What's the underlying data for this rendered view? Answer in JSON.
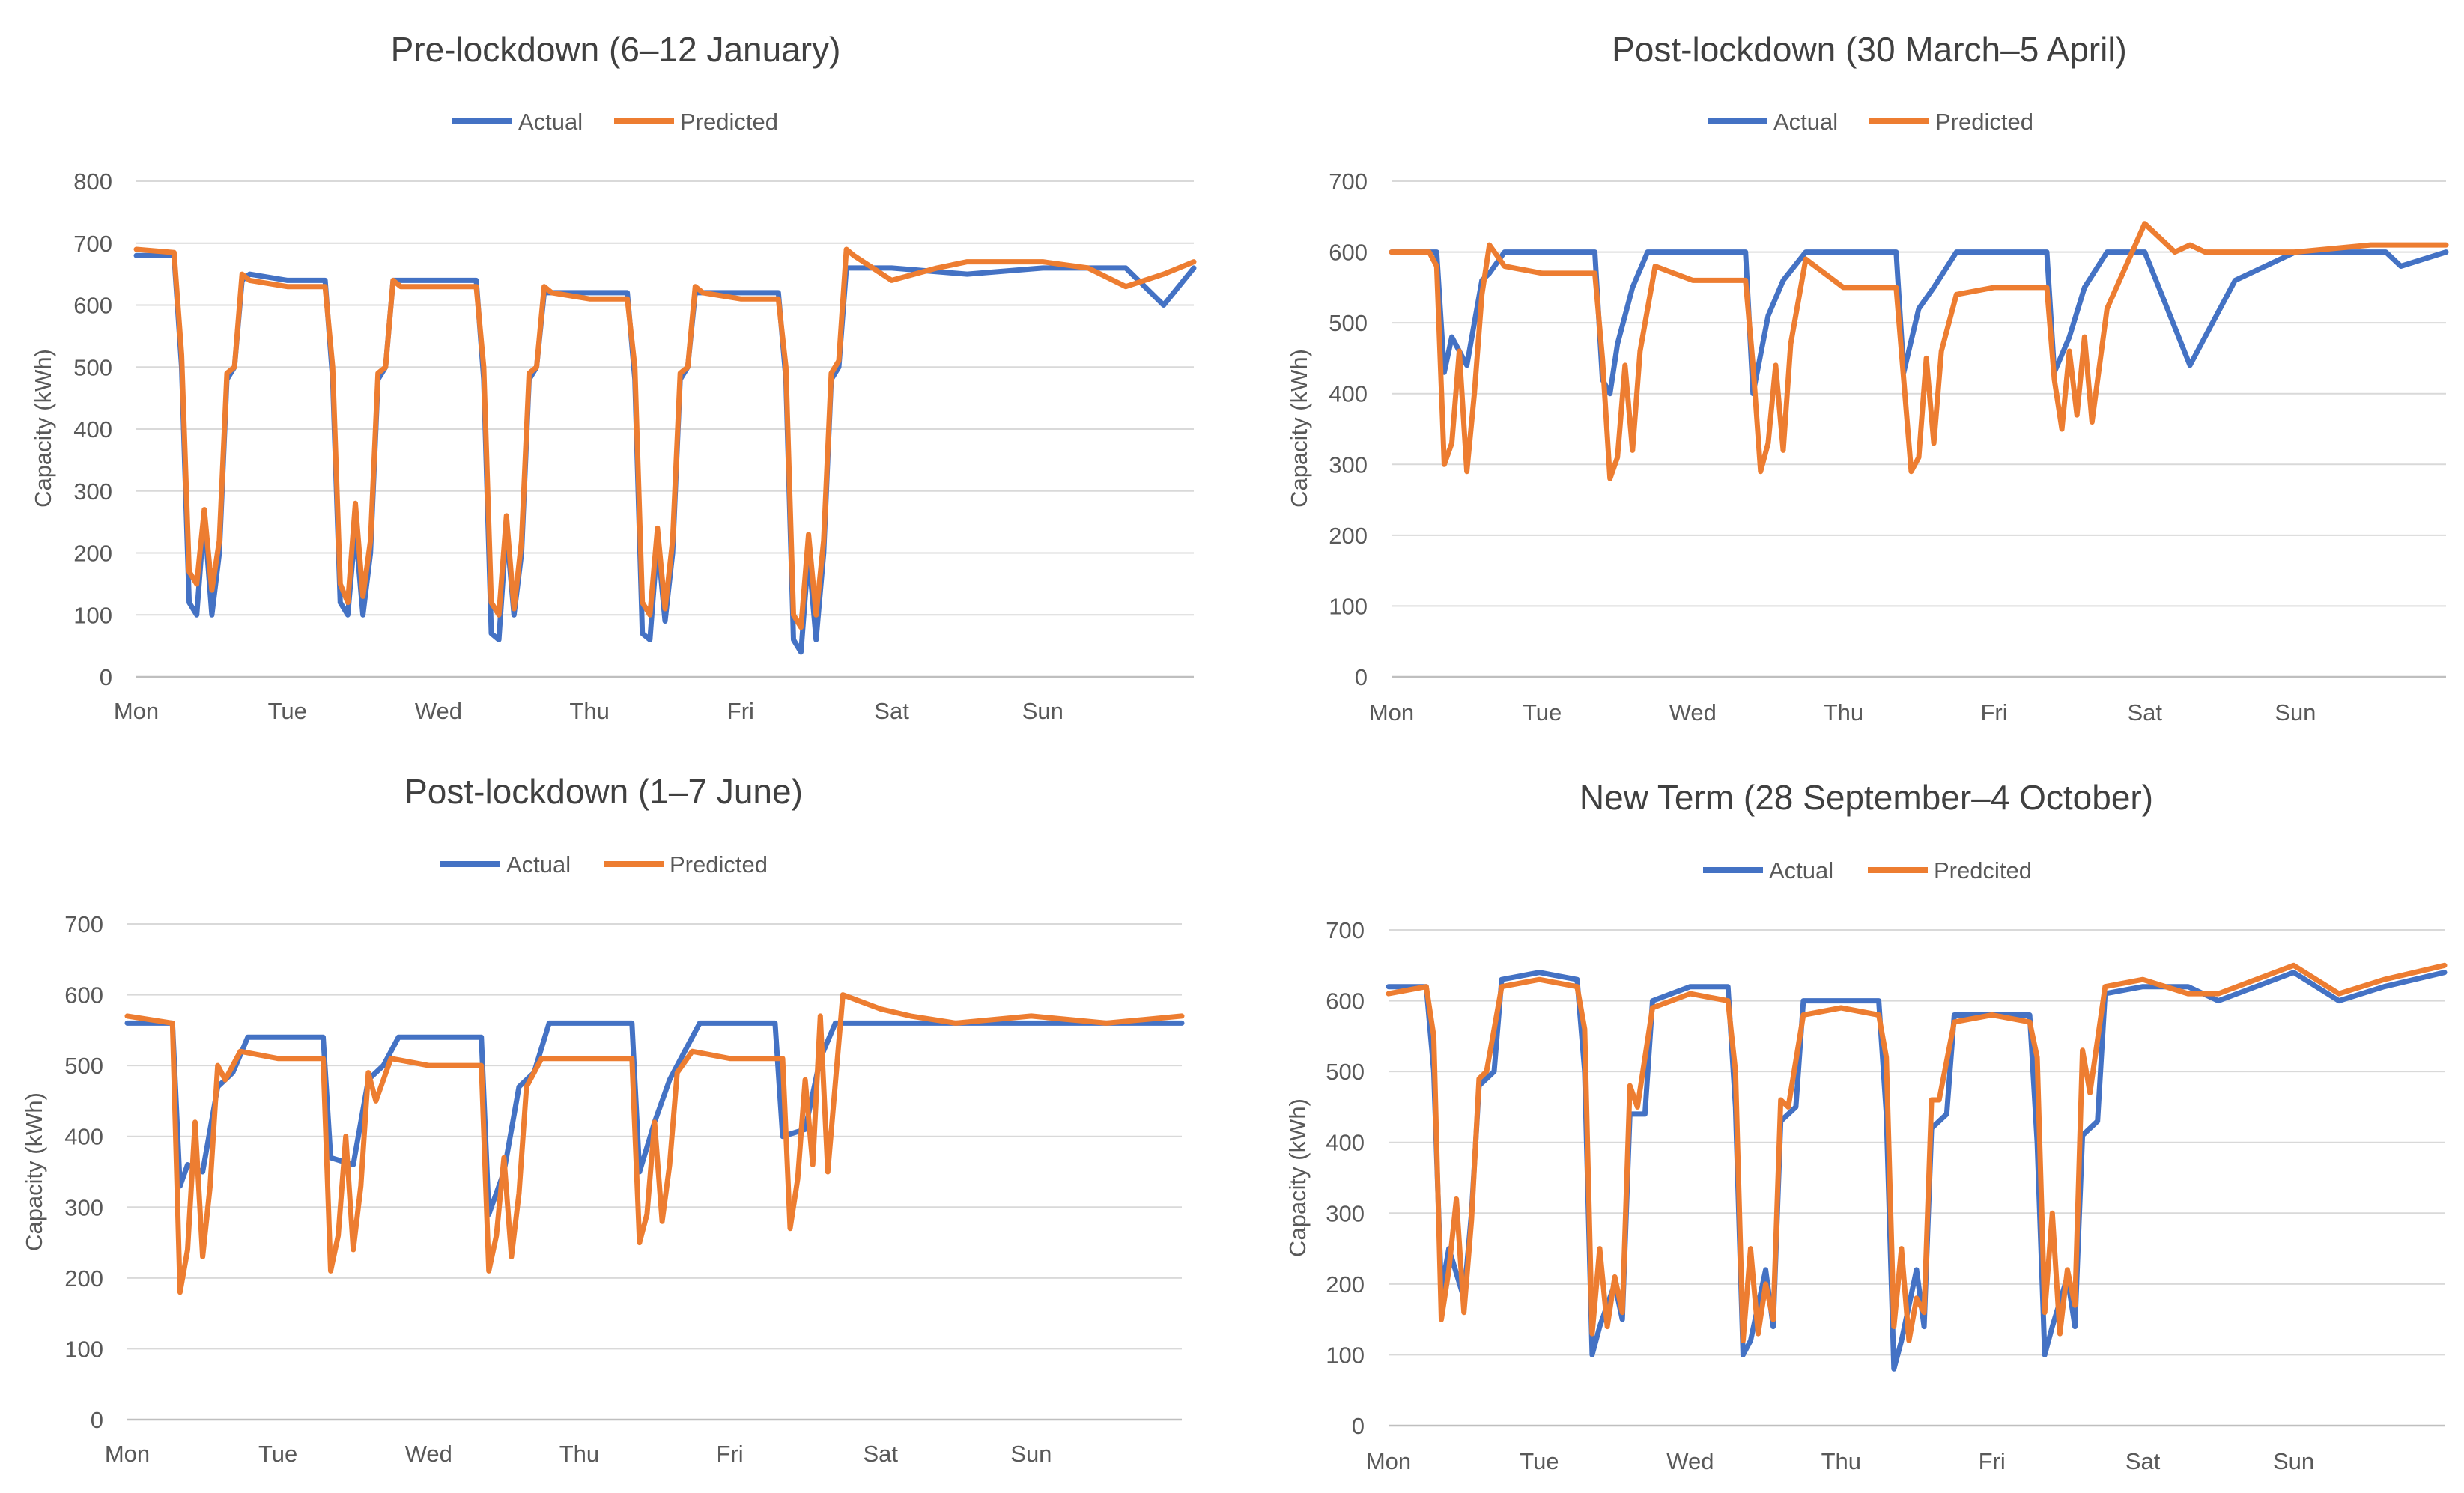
{
  "chart_data": [
    {
      "type": "line",
      "title": "Pre-lockdown (6–12 January)",
      "xlabel": "",
      "ylabel": "Capacity (kWh)",
      "ylim": [
        0,
        800
      ],
      "yticks": [
        0,
        100,
        200,
        300,
        400,
        500,
        600,
        700,
        800
      ],
      "categories": [
        "Mon",
        "Tue",
        "Wed",
        "Thu",
        "Fri",
        "Sat",
        "Sun"
      ],
      "legend": [
        "Actual",
        "Predicted"
      ],
      "colors": {
        "actual": "#4472c4",
        "predicted": "#ed7d31"
      },
      "series": [
        {
          "name": "Actual",
          "x": [
            0,
            0.25,
            0.3,
            0.35,
            0.4,
            0.45,
            0.5,
            0.55,
            0.6,
            0.65,
            0.7,
            0.75,
            1.0,
            1.25,
            1.3,
            1.35,
            1.4,
            1.45,
            1.5,
            1.55,
            1.6,
            1.65,
            1.7,
            1.75,
            2.0,
            2.25,
            2.3,
            2.35,
            2.4,
            2.45,
            2.5,
            2.55,
            2.6,
            2.65,
            2.7,
            2.75,
            3.0,
            3.25,
            3.3,
            3.35,
            3.4,
            3.45,
            3.5,
            3.55,
            3.6,
            3.65,
            3.7,
            3.75,
            4.0,
            4.25,
            4.3,
            4.35,
            4.4,
            4.45,
            4.5,
            4.55,
            4.6,
            4.65,
            4.7,
            4.75,
            5.0,
            5.5,
            6.0,
            6.3,
            6.55,
            6.8,
            7.0
          ],
          "y": [
            680,
            680,
            500,
            120,
            100,
            260,
            100,
            200,
            480,
            500,
            640,
            650,
            640,
            640,
            480,
            120,
            100,
            240,
            100,
            200,
            480,
            500,
            640,
            640,
            640,
            640,
            480,
            70,
            60,
            240,
            100,
            200,
            480,
            500,
            620,
            620,
            620,
            620,
            480,
            70,
            60,
            220,
            90,
            200,
            480,
            500,
            620,
            620,
            620,
            620,
            480,
            60,
            40,
            200,
            60,
            200,
            480,
            500,
            660,
            660,
            660,
            650,
            660,
            660,
            660,
            600,
            660
          ]
        },
        {
          "name": "Predicted",
          "x": [
            0,
            0.25,
            0.3,
            0.35,
            0.4,
            0.45,
            0.5,
            0.55,
            0.6,
            0.65,
            0.7,
            0.75,
            1.0,
            1.25,
            1.3,
            1.35,
            1.4,
            1.45,
            1.5,
            1.55,
            1.6,
            1.65,
            1.7,
            1.75,
            2.0,
            2.25,
            2.3,
            2.35,
            2.4,
            2.45,
            2.5,
            2.55,
            2.6,
            2.65,
            2.7,
            2.75,
            3.0,
            3.25,
            3.3,
            3.35,
            3.4,
            3.45,
            3.5,
            3.55,
            3.6,
            3.65,
            3.7,
            3.75,
            4.0,
            4.25,
            4.3,
            4.35,
            4.4,
            4.45,
            4.5,
            4.55,
            4.6,
            4.65,
            4.7,
            4.75,
            5.0,
            5.3,
            5.5,
            6.0,
            6.3,
            6.55,
            6.8,
            7.0
          ],
          "y": [
            690,
            685,
            520,
            170,
            150,
            270,
            140,
            220,
            490,
            500,
            650,
            640,
            630,
            630,
            500,
            150,
            120,
            280,
            130,
            220,
            490,
            500,
            640,
            630,
            630,
            630,
            500,
            120,
            100,
            260,
            110,
            220,
            490,
            500,
            630,
            620,
            610,
            610,
            500,
            120,
            100,
            240,
            110,
            220,
            490,
            500,
            630,
            620,
            610,
            610,
            500,
            100,
            80,
            230,
            100,
            220,
            490,
            510,
            690,
            680,
            640,
            660,
            670,
            670,
            660,
            630,
            650,
            670
          ]
        }
      ]
    },
    {
      "type": "line",
      "title": "Post-lockdown (30 March–5 April)",
      "xlabel": "",
      "ylabel": "Capacity (kWh)",
      "ylim": [
        0,
        700
      ],
      "yticks": [
        0,
        100,
        200,
        300,
        400,
        500,
        600,
        700
      ],
      "categories": [
        "Mon",
        "Tue",
        "Wed",
        "Thu",
        "Fri",
        "Sat",
        "Sun"
      ],
      "legend": [
        "Actual",
        "Predicted"
      ],
      "colors": {
        "actual": "#4472c4",
        "predicted": "#ed7d31"
      },
      "series": [
        {
          "name": "Actual",
          "x": [
            0,
            0.3,
            0.35,
            0.4,
            0.5,
            0.6,
            0.65,
            0.75,
            1.0,
            1.35,
            1.4,
            1.45,
            1.5,
            1.6,
            1.7,
            1.8,
            2.0,
            2.35,
            2.4,
            2.5,
            2.6,
            2.75,
            3.0,
            3.35,
            3.4,
            3.5,
            3.6,
            3.75,
            4.0,
            4.35,
            4.4,
            4.5,
            4.6,
            4.75,
            5.0,
            5.3,
            5.6,
            6.0,
            6.6,
            6.7,
            7.0
          ],
          "y": [
            600,
            600,
            430,
            480,
            440,
            560,
            570,
            600,
            600,
            600,
            420,
            400,
            470,
            550,
            600,
            600,
            600,
            600,
            400,
            510,
            560,
            600,
            600,
            600,
            430,
            520,
            550,
            600,
            600,
            600,
            430,
            480,
            550,
            600,
            600,
            440,
            560,
            600,
            600,
            580,
            600
          ]
        },
        {
          "name": "Predicted",
          "x": [
            0,
            0.25,
            0.3,
            0.35,
            0.4,
            0.45,
            0.5,
            0.55,
            0.6,
            0.65,
            0.75,
            1.0,
            1.35,
            1.4,
            1.45,
            1.5,
            1.55,
            1.6,
            1.65,
            1.75,
            2.0,
            2.35,
            2.4,
            2.45,
            2.5,
            2.55,
            2.6,
            2.65,
            2.75,
            3.0,
            3.35,
            3.4,
            3.45,
            3.5,
            3.55,
            3.6,
            3.65,
            3.75,
            4.0,
            4.35,
            4.4,
            4.45,
            4.5,
            4.55,
            4.6,
            4.65,
            4.75,
            5.0,
            5.2,
            5.3,
            5.4,
            5.5,
            6.0,
            6.5,
            6.8,
            7.0
          ],
          "y": [
            600,
            600,
            580,
            300,
            330,
            460,
            290,
            400,
            540,
            610,
            580,
            570,
            570,
            450,
            280,
            310,
            440,
            320,
            460,
            580,
            560,
            560,
            440,
            290,
            330,
            440,
            320,
            470,
            590,
            550,
            550,
            420,
            290,
            310,
            450,
            330,
            460,
            540,
            550,
            550,
            420,
            350,
            460,
            370,
            480,
            360,
            520,
            640,
            600,
            610,
            600,
            600,
            600,
            610,
            610,
            610
          ]
        }
      ]
    },
    {
      "type": "line",
      "title": "Post-lockdown (1–7 June)",
      "xlabel": "",
      "ylabel": "Capacity (kWh)",
      "ylim": [
        0,
        700
      ],
      "yticks": [
        0,
        100,
        200,
        300,
        400,
        500,
        600,
        700
      ],
      "categories": [
        "Mon",
        "Tue",
        "Wed",
        "Thu",
        "Fri",
        "Sat",
        "Sun"
      ],
      "legend": [
        "Actual",
        "Predicted"
      ],
      "colors": {
        "actual": "#4472c4",
        "predicted": "#ed7d31"
      },
      "series": [
        {
          "name": "Actual",
          "x": [
            0,
            0.3,
            0.35,
            0.4,
            0.5,
            0.6,
            0.7,
            0.8,
            1.0,
            1.3,
            1.35,
            1.5,
            1.6,
            1.7,
            1.8,
            2.0,
            2.35,
            2.4,
            2.5,
            2.6,
            2.7,
            2.8,
            3.0,
            3.35,
            3.4,
            3.5,
            3.6,
            3.7,
            3.8,
            4.0,
            4.3,
            4.35,
            4.5,
            4.6,
            4.7,
            4.8,
            5.0,
            5.5,
            6.0,
            6.5,
            7.0
          ],
          "y": [
            560,
            560,
            330,
            360,
            350,
            470,
            490,
            540,
            540,
            540,
            370,
            360,
            480,
            500,
            540,
            540,
            540,
            290,
            350,
            470,
            490,
            560,
            560,
            560,
            350,
            420,
            480,
            520,
            560,
            560,
            560,
            400,
            410,
            510,
            560,
            560,
            560,
            560,
            560,
            560,
            560
          ]
        },
        {
          "name": "Predicted",
          "x": [
            0,
            0.3,
            0.35,
            0.4,
            0.45,
            0.5,
            0.55,
            0.6,
            0.65,
            0.75,
            1.0,
            1.3,
            1.35,
            1.4,
            1.45,
            1.5,
            1.55,
            1.6,
            1.65,
            1.75,
            2.0,
            2.35,
            2.4,
            2.45,
            2.5,
            2.55,
            2.6,
            2.65,
            2.75,
            3.0,
            3.35,
            3.4,
            3.45,
            3.5,
            3.55,
            3.6,
            3.65,
            3.75,
            4.0,
            4.35,
            4.4,
            4.45,
            4.5,
            4.55,
            4.6,
            4.65,
            4.75,
            5.0,
            5.2,
            5.5,
            6.0,
            6.5,
            7.0
          ],
          "y": [
            570,
            560,
            180,
            240,
            420,
            230,
            330,
            500,
            480,
            520,
            510,
            510,
            210,
            260,
            400,
            240,
            330,
            490,
            450,
            510,
            500,
            500,
            210,
            260,
            370,
            230,
            320,
            470,
            510,
            510,
            510,
            250,
            290,
            420,
            280,
            360,
            490,
            520,
            510,
            510,
            270,
            340,
            480,
            360,
            570,
            350,
            600,
            580,
            570,
            560,
            570,
            560,
            570
          ]
        }
      ]
    },
    {
      "type": "line",
      "title": "New Term (28 September–4 October)",
      "xlabel": "",
      "ylabel": "Capacity (kWh)",
      "ylim": [
        0,
        700
      ],
      "yticks": [
        0,
        100,
        200,
        300,
        400,
        500,
        600,
        700
      ],
      "categories": [
        "Mon",
        "Tue",
        "Wed",
        "Thu",
        "Fri",
        "Sat",
        "Sun"
      ],
      "legend": [
        "Actual",
        "Predcited"
      ],
      "colors": {
        "actual": "#4472c4",
        "predicted": "#ed7d31"
      },
      "series": [
        {
          "name": "Actual",
          "x": [
            0,
            0.25,
            0.3,
            0.35,
            0.4,
            0.5,
            0.55,
            0.6,
            0.7,
            0.75,
            1.0,
            1.25,
            1.3,
            1.35,
            1.4,
            1.5,
            1.55,
            1.6,
            1.7,
            1.75,
            2.0,
            2.25,
            2.3,
            2.35,
            2.4,
            2.5,
            2.55,
            2.6,
            2.7,
            2.75,
            3.0,
            3.25,
            3.3,
            3.35,
            3.4,
            3.5,
            3.55,
            3.6,
            3.7,
            3.75,
            4.0,
            4.25,
            4.3,
            4.35,
            4.4,
            4.5,
            4.55,
            4.6,
            4.7,
            4.75,
            5.0,
            5.3,
            5.5,
            6.0,
            6.3,
            6.6,
            7.0
          ],
          "y": [
            620,
            620,
            500,
            190,
            250,
            180,
            300,
            480,
            500,
            630,
            640,
            630,
            500,
            100,
            140,
            200,
            150,
            440,
            440,
            600,
            620,
            620,
            450,
            100,
            120,
            220,
            140,
            430,
            450,
            600,
            600,
            600,
            440,
            80,
            120,
            220,
            140,
            420,
            440,
            580,
            580,
            580,
            400,
            100,
            140,
            210,
            140,
            410,
            430,
            610,
            620,
            620,
            600,
            640,
            600,
            620,
            640
          ]
        },
        {
          "name": "Predicted",
          "x": [
            0,
            0.25,
            0.3,
            0.35,
            0.4,
            0.45,
            0.5,
            0.55,
            0.6,
            0.65,
            0.75,
            1.0,
            1.25,
            1.3,
            1.35,
            1.4,
            1.45,
            1.5,
            1.55,
            1.6,
            1.65,
            1.75,
            2.0,
            2.25,
            2.3,
            2.35,
            2.4,
            2.45,
            2.5,
            2.55,
            2.6,
            2.65,
            2.75,
            3.0,
            3.25,
            3.3,
            3.35,
            3.4,
            3.45,
            3.5,
            3.55,
            3.6,
            3.65,
            3.75,
            4.0,
            4.25,
            4.3,
            4.35,
            4.4,
            4.45,
            4.5,
            4.55,
            4.6,
            4.65,
            4.75,
            5.0,
            5.3,
            5.5,
            6.0,
            6.3,
            6.6,
            7.0
          ],
          "y": [
            610,
            620,
            550,
            150,
            220,
            320,
            160,
            290,
            490,
            500,
            620,
            630,
            620,
            560,
            130,
            250,
            140,
            210,
            160,
            480,
            450,
            590,
            610,
            600,
            500,
            120,
            250,
            130,
            200,
            150,
            460,
            450,
            580,
            590,
            580,
            520,
            140,
            250,
            120,
            180,
            160,
            460,
            460,
            570,
            580,
            570,
            520,
            160,
            300,
            130,
            220,
            170,
            530,
            470,
            620,
            630,
            610,
            610,
            650,
            610,
            630,
            650
          ]
        }
      ]
    }
  ]
}
